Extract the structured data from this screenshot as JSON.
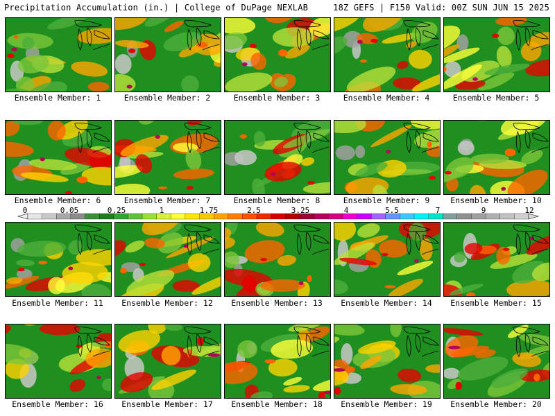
{
  "header": {
    "title": "Precipitation Accumulation (in.) | College of DuPage NEXLAB",
    "run_info": "18Z GEFS | F150 Valid: 00Z SUN JUN 15 2025"
  },
  "panels": [
    {
      "label": "Ensemble Member: 1"
    },
    {
      "label": "Ensemble Member: 2"
    },
    {
      "label": "Ensemble Member: 3"
    },
    {
      "label": "Ensemble Member: 4"
    },
    {
      "label": "Ensemble Member: 5"
    },
    {
      "label": "Ensemble Member: 6"
    },
    {
      "label": "Ensemble Member: 7"
    },
    {
      "label": "Ensemble Member: 8"
    },
    {
      "label": "Ensemble Member: 9"
    },
    {
      "label": "Ensemble Member: 10"
    },
    {
      "label": "Ensemble Member: 11"
    },
    {
      "label": "Ensemble Member: 12"
    },
    {
      "label": "Ensemble Member: 13"
    },
    {
      "label": "Ensemble Member: 14"
    },
    {
      "label": "Ensemble Member: 15"
    },
    {
      "label": "Ensemble Member: 16"
    },
    {
      "label": "Ensemble Member: 17"
    },
    {
      "label": "Ensemble Member: 18"
    },
    {
      "label": "Ensemble Member: 19"
    },
    {
      "label": "Ensemble Member: 20"
    }
  ],
  "colorbar": {
    "labels": [
      "0",
      "0.05",
      "0.25",
      "1",
      "1.75",
      "2.5",
      "3.25",
      "4",
      "5.5",
      "7",
      "9",
      "12"
    ],
    "colors": [
      "#e6e6e6",
      "#c8c8c8",
      "#a8a8a8",
      "#8c8c8c",
      "#3a8f3a",
      "#1f7f1f",
      "#2fa52f",
      "#5cc23a",
      "#9be03a",
      "#d8f03a",
      "#ffff3a",
      "#ffe600",
      "#ffc800",
      "#ffa500",
      "#ff7d00",
      "#ff5000",
      "#f02800",
      "#d80000",
      "#b40000",
      "#960032",
      "#b4005a",
      "#d7007f",
      "#f000c8",
      "#c800ff",
      "#a064ff",
      "#6496ff",
      "#3cc8ff",
      "#00f0ff",
      "#00e6c8",
      "#80a0a0",
      "#909090",
      "#a0a0a0",
      "#b0b0b0",
      "#c0c0c0",
      "#d0d0d0"
    ]
  },
  "styles": {
    "base_green": "#1f8f1f",
    "coastline_color": "#000000"
  }
}
